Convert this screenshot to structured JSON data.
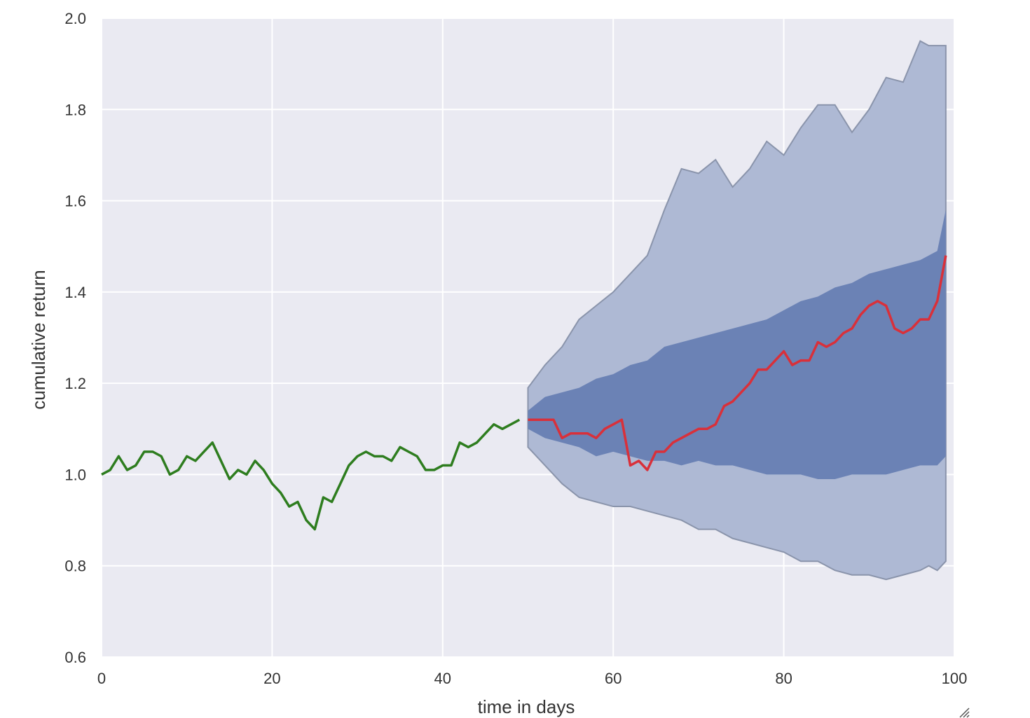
{
  "chart_data": {
    "type": "line",
    "title": "",
    "xlabel": "time in days",
    "ylabel": "cumulative return",
    "xlim": [
      0,
      100
    ],
    "ylim": [
      0.6,
      2.0
    ],
    "xticks": [
      0,
      20,
      40,
      60,
      80,
      100
    ],
    "yticks": [
      0.6,
      0.8,
      1.0,
      1.2,
      1.4,
      1.6,
      1.8,
      2.0
    ],
    "xtick_labels": [
      "0",
      "20",
      "40",
      "60",
      "80",
      "100"
    ],
    "ytick_labels": [
      "0.6",
      "0.8",
      "1.0",
      "1.2",
      "1.4",
      "1.6",
      "1.8",
      "2.0"
    ],
    "grid": true,
    "background_color": "#eaeaf2",
    "grid_color": "#ffffff",
    "historical": {
      "color": "#2e7d1f",
      "x": [
        0,
        1,
        2,
        3,
        4,
        5,
        6,
        7,
        8,
        9,
        10,
        11,
        12,
        13,
        14,
        15,
        16,
        17,
        18,
        19,
        20,
        21,
        22,
        23,
        24,
        25,
        26,
        27,
        28,
        29,
        30,
        31,
        32,
        33,
        34,
        35,
        36,
        37,
        38,
        39,
        40,
        41,
        42,
        43,
        44,
        45,
        46,
        47,
        48,
        49
      ],
      "y": [
        1.0,
        1.01,
        1.04,
        1.01,
        1.02,
        1.05,
        1.05,
        1.04,
        1.0,
        1.01,
        1.04,
        1.03,
        1.05,
        1.07,
        1.03,
        0.99,
        1.01,
        1.0,
        1.03,
        1.01,
        0.98,
        0.96,
        0.93,
        0.94,
        0.9,
        0.88,
        0.95,
        0.94,
        0.98,
        1.02,
        1.04,
        1.05,
        1.04,
        1.04,
        1.03,
        1.06,
        1.05,
        1.04,
        1.01,
        1.01,
        1.02,
        1.02,
        1.07,
        1.06,
        1.07,
        1.09,
        1.11,
        1.1,
        1.11,
        1.12
      ]
    },
    "forecast_median": {
      "color": "#d9303a",
      "x": [
        50,
        51,
        52,
        53,
        54,
        55,
        56,
        57,
        58,
        59,
        60,
        61,
        62,
        63,
        64,
        65,
        66,
        67,
        68,
        69,
        70,
        71,
        72,
        73,
        74,
        75,
        76,
        77,
        78,
        79,
        80,
        81,
        82,
        83,
        84,
        85,
        86,
        87,
        88,
        89,
        90,
        91,
        92,
        93,
        94,
        95,
        96,
        97,
        98,
        99
      ],
      "y": [
        1.12,
        1.12,
        1.12,
        1.12,
        1.08,
        1.09,
        1.09,
        1.09,
        1.08,
        1.1,
        1.11,
        1.12,
        1.02,
        1.03,
        1.01,
        1.05,
        1.05,
        1.07,
        1.08,
        1.09,
        1.1,
        1.1,
        1.11,
        1.15,
        1.16,
        1.18,
        1.2,
        1.23,
        1.23,
        1.25,
        1.27,
        1.24,
        1.25,
        1.25,
        1.29,
        1.28,
        1.29,
        1.31,
        1.32,
        1.35,
        1.37,
        1.38,
        1.37,
        1.32,
        1.31,
        1.32,
        1.34,
        1.34,
        1.38,
        1.48
      ]
    },
    "inner_band": {
      "color": "#6b82b5",
      "x": [
        50,
        52,
        54,
        56,
        58,
        60,
        62,
        64,
        66,
        68,
        70,
        72,
        74,
        76,
        78,
        80,
        82,
        84,
        86,
        88,
        90,
        92,
        94,
        96,
        98,
        99
      ],
      "lower": [
        1.1,
        1.08,
        1.07,
        1.06,
        1.04,
        1.05,
        1.04,
        1.03,
        1.03,
        1.02,
        1.03,
        1.02,
        1.02,
        1.01,
        1.0,
        1.0,
        1.0,
        0.99,
        0.99,
        1.0,
        1.0,
        1.0,
        1.01,
        1.02,
        1.02,
        1.04
      ],
      "upper": [
        1.14,
        1.17,
        1.18,
        1.19,
        1.21,
        1.22,
        1.24,
        1.25,
        1.28,
        1.29,
        1.3,
        1.31,
        1.32,
        1.33,
        1.34,
        1.36,
        1.38,
        1.39,
        1.41,
        1.42,
        1.44,
        1.45,
        1.46,
        1.47,
        1.49,
        1.58
      ]
    },
    "outer_band": {
      "color": "#aeb9d4",
      "x": [
        50,
        52,
        54,
        56,
        58,
        60,
        62,
        64,
        66,
        68,
        70,
        72,
        74,
        76,
        78,
        80,
        82,
        84,
        86,
        88,
        90,
        92,
        94,
        96,
        97,
        98,
        99
      ],
      "lower": [
        1.06,
        1.02,
        0.98,
        0.95,
        0.94,
        0.93,
        0.93,
        0.92,
        0.91,
        0.9,
        0.88,
        0.88,
        0.86,
        0.85,
        0.84,
        0.83,
        0.81,
        0.81,
        0.79,
        0.78,
        0.78,
        0.77,
        0.78,
        0.79,
        0.8,
        0.79,
        0.81
      ],
      "upper": [
        1.19,
        1.24,
        1.28,
        1.34,
        1.37,
        1.4,
        1.44,
        1.48,
        1.58,
        1.67,
        1.66,
        1.69,
        1.63,
        1.67,
        1.73,
        1.7,
        1.76,
        1.81,
        1.81,
        1.75,
        1.8,
        1.87,
        1.86,
        1.95,
        1.94,
        1.94,
        1.94
      ]
    }
  },
  "resize_icon": "resize-handle-icon"
}
